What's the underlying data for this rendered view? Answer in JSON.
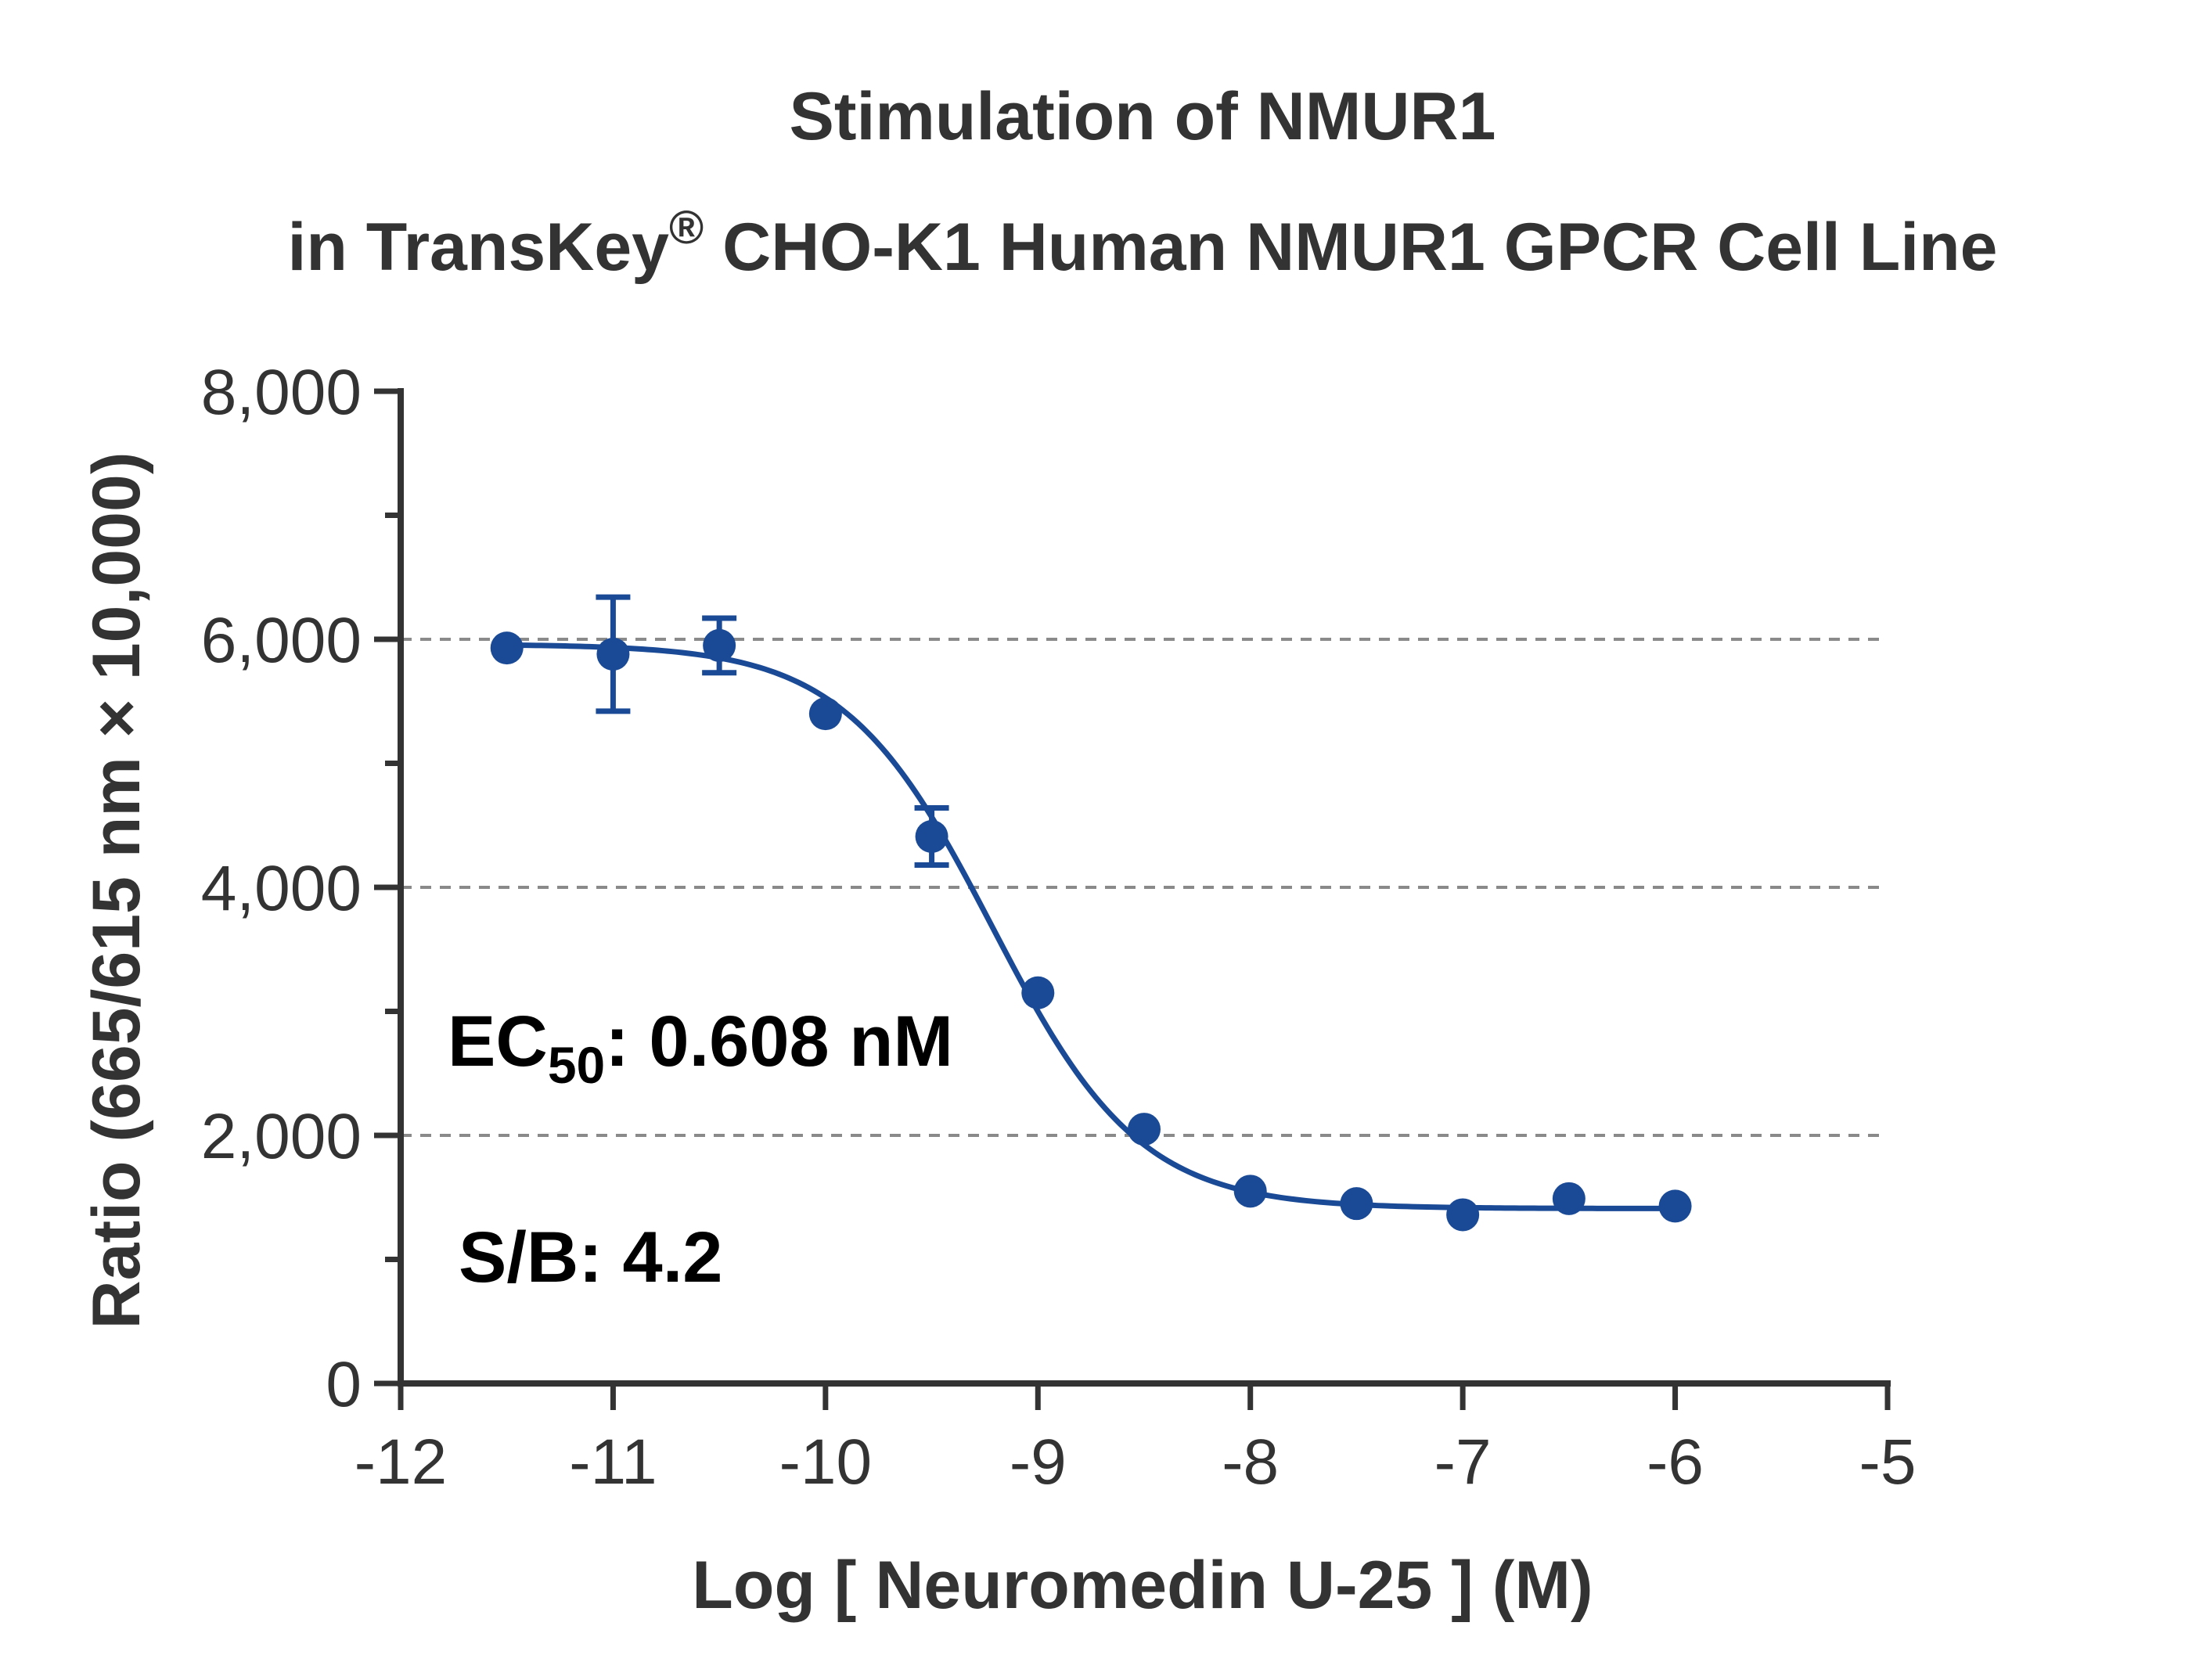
{
  "chart_data": {
    "type": "scatter",
    "title": {
      "line1": "Stimulation of  NMUR1",
      "line2_prefix": "in TransKey",
      "line2_superscript": "®",
      "line2_suffix": " CHO-K1 Human NMUR1 GPCR Cell Line"
    },
    "xlabel": "Log [ Neuromedin U-25 ]  (M)",
    "ylabel": "Ratio (665/615 nm × 10,000)",
    "xlim": [
      -12,
      -5
    ],
    "ylim": [
      0,
      8000
    ],
    "x_ticks": [
      -12,
      -11,
      -10,
      -9,
      -8,
      -7,
      -6,
      -5
    ],
    "x_tick_labels": [
      "-12",
      "-11",
      "-10",
      "-9",
      "-8",
      "-7",
      "-6",
      "-5"
    ],
    "y_ticks": [
      0,
      2000,
      4000,
      6000,
      8000
    ],
    "y_tick_labels": [
      "0",
      "2,000",
      "4,000",
      "6,000",
      "8,000"
    ],
    "y_minor_ticks": [
      1000,
      3000,
      5000,
      7000
    ],
    "gridlines_y": [
      2000,
      4000,
      6000
    ],
    "grid": "horizontal dashed",
    "series": [
      {
        "color": "#1a4a96",
        "x": [
          -11.5,
          -11,
          -10.5,
          -10,
          -9.5,
          -9,
          -8.5,
          -8,
          -7.5,
          -7,
          -6.5,
          -6
        ],
        "y": [
          5930,
          5880,
          5950,
          5400,
          4410,
          3150,
          2050,
          1550,
          1450,
          1360,
          1490,
          1430
        ],
        "error": [
          0,
          460,
          220,
          0,
          230,
          0,
          0,
          0,
          0,
          0,
          0,
          0
        ]
      }
    ],
    "fit": {
      "model": "four-parameter logistic",
      "top": 5960,
      "bottom": 1410,
      "log_ec50": -9.216,
      "hill_slope": -1.25
    },
    "annotations": {
      "ec50_prefix": "EC",
      "ec50_subscript": "50",
      "ec50_suffix": ": 0.608 nM",
      "sb": "S/B: 4.2"
    },
    "colors": {
      "series": "#1a4a96",
      "axis": "#333333",
      "grid": "#8a8a8a"
    }
  }
}
